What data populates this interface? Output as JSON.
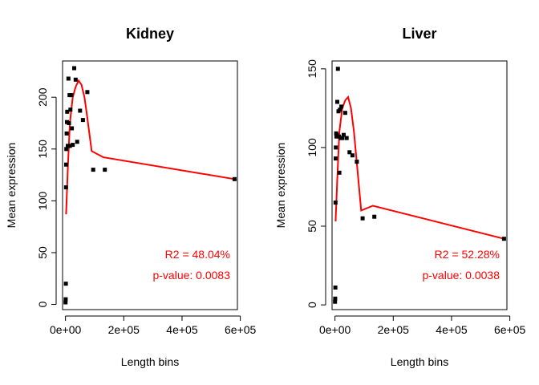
{
  "chart_data": [
    {
      "type": "scatter",
      "title": "Kidney",
      "xlabel": "Length bins",
      "ylabel": "Mean expression",
      "xlim": [
        -10000,
        590000
      ],
      "ylim": [
        -5,
        235
      ],
      "xticks": [
        0,
        200000,
        400000,
        600000
      ],
      "xtick_labels": [
        "0e+00",
        "2e+05",
        "4e+05",
        "6e+05"
      ],
      "yticks": [
        0,
        50,
        100,
        150,
        200
      ],
      "ytick_labels": [
        "0",
        "50",
        "100",
        "150",
        "200"
      ],
      "grid": false,
      "legend": "none",
      "points": {
        "x": [
          300,
          800,
          1200,
          1800,
          2500,
          3000,
          4000,
          5000,
          6000,
          8000,
          10000,
          12000,
          14000,
          15000,
          17000,
          20000,
          22000,
          25000,
          30000,
          35000,
          40000,
          50000,
          60000,
          75000,
          95000,
          135000,
          580000
        ],
        "y": [
          2,
          5,
          20,
          113,
          135,
          150,
          165,
          176,
          186,
          153,
          218,
          175,
          202,
          153,
          188,
          202,
          170,
          154,
          228,
          217,
          157,
          187,
          178,
          205,
          130,
          130,
          121
        ]
      },
      "fit_line": {
        "color": "#ff0000",
        "x": [
          2000,
          8000,
          15000,
          25000,
          35000,
          45000,
          55000,
          65000,
          75000,
          90000,
          130000,
          580000
        ],
        "y": [
          87,
          130,
          175,
          200,
          210,
          216,
          212,
          200,
          180,
          148,
          142,
          121
        ]
      },
      "annotations": [
        "R2 = 48.04%",
        "p-value: 0.0083"
      ],
      "annotation_color": "#ff0000",
      "point_color": "#000000"
    },
    {
      "type": "scatter",
      "title": "Liver",
      "xlabel": "Length bins",
      "ylabel": "Mean expression",
      "xlim": [
        -10000,
        590000
      ],
      "ylim": [
        -3,
        155
      ],
      "xticks": [
        0,
        200000,
        400000,
        600000
      ],
      "xtick_labels": [
        "0e+00",
        "2e+05",
        "4e+05",
        "6e+05"
      ],
      "yticks": [
        0,
        50,
        100,
        150
      ],
      "ytick_labels": [
        "0",
        "50",
        "100",
        "150"
      ],
      "grid": false,
      "legend": "none",
      "points": {
        "x": [
          300,
          800,
          1200,
          1800,
          2500,
          3000,
          4000,
          5000,
          6000,
          8000,
          10000,
          12000,
          14000,
          15000,
          17000,
          20000,
          22000,
          25000,
          30000,
          35000,
          40000,
          50000,
          60000,
          75000,
          95000,
          135000,
          580000
        ],
        "y": [
          2,
          4,
          11,
          65,
          93,
          100,
          109,
          107,
          108,
          129,
          150,
          123,
          107,
          84,
          124,
          106,
          126,
          106,
          108,
          122,
          106,
          97,
          95,
          91,
          55,
          56,
          42
        ]
      },
      "fit_line": {
        "color": "#ff0000",
        "x": [
          2000,
          8000,
          15000,
          25000,
          35000,
          45000,
          55000,
          65000,
          75000,
          90000,
          130000,
          580000
        ],
        "y": [
          53,
          80,
          110,
          125,
          130,
          132,
          125,
          110,
          90,
          60,
          63,
          42
        ]
      },
      "annotations": [
        "R2 = 52.28%",
        "p-value: 0.0038"
      ],
      "annotation_color": "#ff0000",
      "point_color": "#000000"
    }
  ]
}
